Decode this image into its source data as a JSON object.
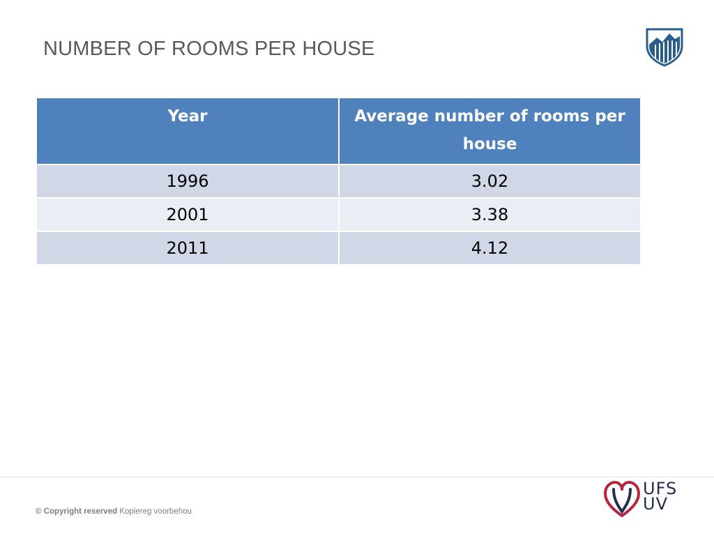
{
  "slide": {
    "title": "NUMBER OF ROOMS PER HOUSE"
  },
  "table": {
    "headers": [
      "Year",
      "Average number of rooms per house"
    ],
    "rows": [
      [
        "1996",
        "3.02"
      ],
      [
        "2001",
        "3.38"
      ],
      [
        "2011",
        "4.12"
      ]
    ]
  },
  "footer": {
    "copyright_prefix": "© Copyright reserved",
    "copyright_suffix": "Kopiereg voorbehou",
    "logo_line1": "UFS",
    "logo_line2": "UV"
  },
  "colors": {
    "header_bg": "#4f81bd",
    "row_odd_bg": "#d0d8e8",
    "row_even_bg": "#e9edf4",
    "crest_blue": "#2b5d8c",
    "logo_red": "#b5253c",
    "logo_navy": "#232e4f"
  }
}
